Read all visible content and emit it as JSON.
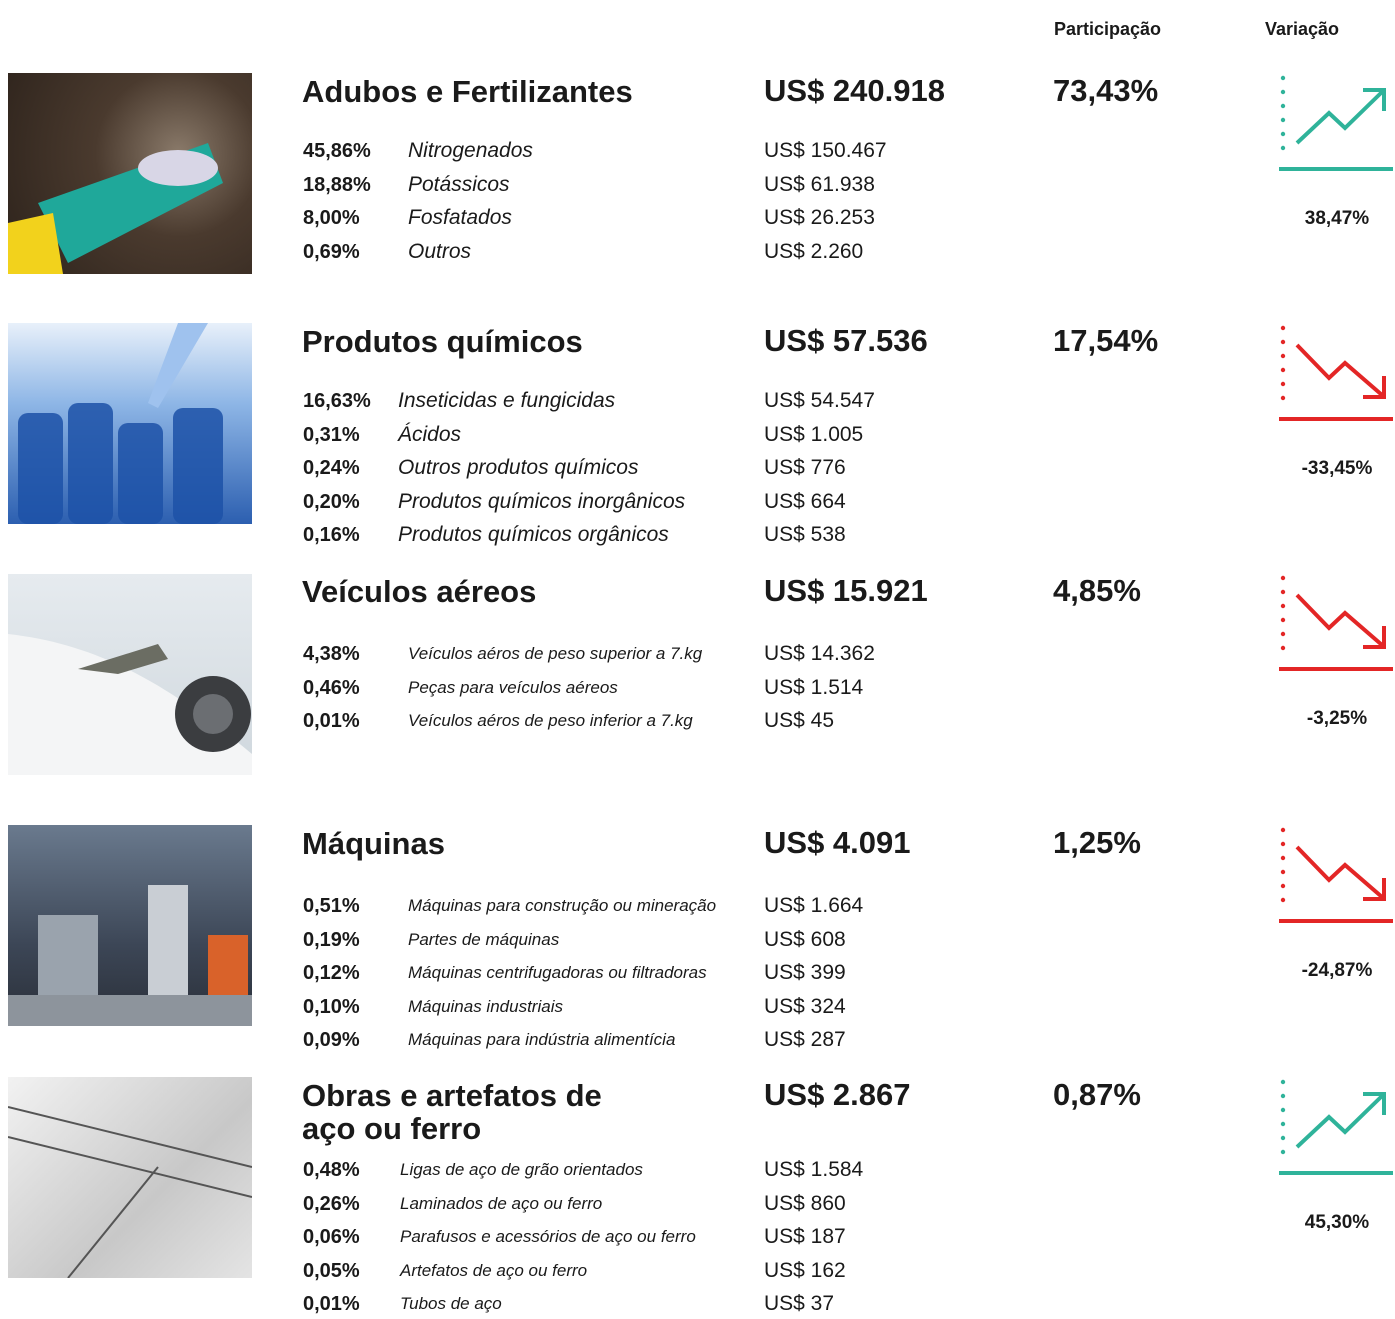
{
  "header": {
    "share_label": "Participação",
    "variation_label": "Variação"
  },
  "sections": [
    {
      "title": "Adubos e Fertilizantes",
      "total": "US$  240.918",
      "share": "73,43%",
      "variation": "38,47%",
      "items": [
        [
          "45,86%",
          "Nitrogenados",
          "US$ 150.467"
        ],
        [
          "18,88%",
          "Potássicos",
          "US$ 61.938"
        ],
        [
          "8,00%",
          "Fosfatados",
          "US$ 26.253"
        ],
        [
          "0,69%",
          "Outros",
          "US$ 2.260"
        ]
      ]
    },
    {
      "title": "Produtos químicos",
      "total": "US$  57.536",
      "share": "17,54%",
      "variation": "-33,45%",
      "items": [
        [
          "16,63%",
          "Inseticidas e fungicidas",
          "US$ 54.547"
        ],
        [
          "0,31%",
          "Ácidos",
          "US$ 1.005"
        ],
        [
          "0,24%",
          "Outros produtos químicos",
          "US$ 776"
        ],
        [
          "0,20%",
          "Produtos químicos inorgânicos",
          "US$ 664"
        ],
        [
          "0,16%",
          "Produtos químicos orgânicos",
          "US$ 538"
        ]
      ]
    },
    {
      "title": "Veículos aéreos",
      "total": "US$  15.921",
      "share": "4,85%",
      "variation": "-3,25%",
      "items": [
        [
          "4,38%",
          "Veículos aéros de peso superior a 7.kg",
          "US$ 14.362"
        ],
        [
          "0,46%",
          "Peças para veículos aéreos",
          "US$ 1.514"
        ],
        [
          "0,01%",
          "Veículos aéros de peso inferior a 7.kg",
          "US$ 45"
        ]
      ]
    },
    {
      "title": "Máquinas",
      "total": "US$  4.091",
      "share": "1,25%",
      "variation": "-24,87%",
      "items": [
        [
          "0,51%",
          "Máquinas para construção ou mineração",
          "US$ 1.664"
        ],
        [
          "0,19%",
          "Partes de máquinas",
          "US$ 608"
        ],
        [
          "0,12%",
          "Máquinas centrifugadoras ou filtradoras",
          "US$ 399"
        ],
        [
          "0,10%",
          "Máquinas industriais",
          "US$ 324"
        ],
        [
          "0,09%",
          "Máquinas para indústria alimentícia",
          "US$ 287"
        ]
      ]
    },
    {
      "title": "Obras e artefatos de\naço ou ferro",
      "total": "US$  2.867",
      "share": "0,87%",
      "variation": "45,30%",
      "items": [
        [
          "0,48%",
          "Ligas de aço de grão orientados",
          "US$ 1.584"
        ],
        [
          "0,26%",
          "Laminados de aço ou ferro",
          "US$ 860"
        ],
        [
          "0,06%",
          "Parafusos e acessórios de aço ou ferro",
          "US$ 187"
        ],
        [
          "0,05%",
          "Artefatos de aço ou ferro",
          "US$ 162"
        ],
        [
          "0,01%",
          "Tubos de aço",
          "US$ 37"
        ]
      ]
    }
  ]
}
